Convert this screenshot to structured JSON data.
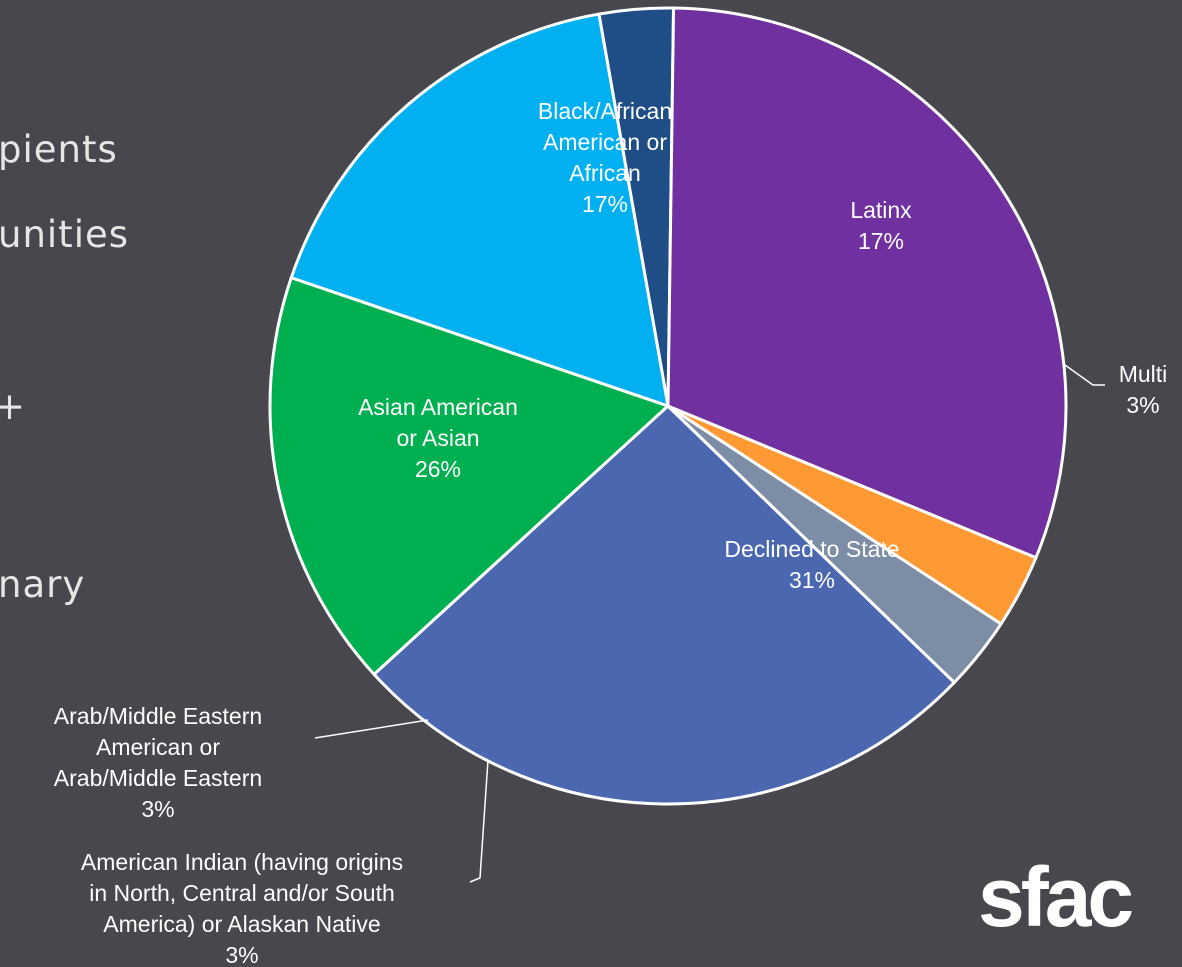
{
  "background_text": [
    "pients",
    "unities",
    "+",
    "nary"
  ],
  "logo": "sfac",
  "chart_data": {
    "type": "pie",
    "start_angle_deg": 89.2,
    "direction": "counterclockwise",
    "slices": [
      {
        "label": [
          "Multi",
          "3%"
        ],
        "value": 3,
        "color": "#1f4e86",
        "callout": true
      },
      {
        "label": [
          "Latinx",
          "17%"
        ],
        "value": 17,
        "color": "#00b0f0",
        "callout": false
      },
      {
        "label": [
          "Black/African",
          "American or",
          "African",
          "17%"
        ],
        "value": 17,
        "color": "#00b050",
        "callout": false
      },
      {
        "label": [
          "Asian American",
          "or Asian",
          "26%"
        ],
        "value": 26,
        "color": "#4a67b0",
        "callout": false
      },
      {
        "label": [
          "Arab/Middle Eastern",
          "American or",
          "Arab/Middle Eastern",
          "3%"
        ],
        "value": 3,
        "color": "#7d8da6",
        "callout": true
      },
      {
        "label": [
          "American Indian (having origins",
          "in North, Central and/or South",
          "America) or Alaskan Native",
          "3%"
        ],
        "value": 3,
        "color": "#ff9933",
        "callout": true
      },
      {
        "label": [
          "Declined to State",
          "31%"
        ],
        "value": 31,
        "color": "#7030a0",
        "callout": false
      }
    ]
  }
}
